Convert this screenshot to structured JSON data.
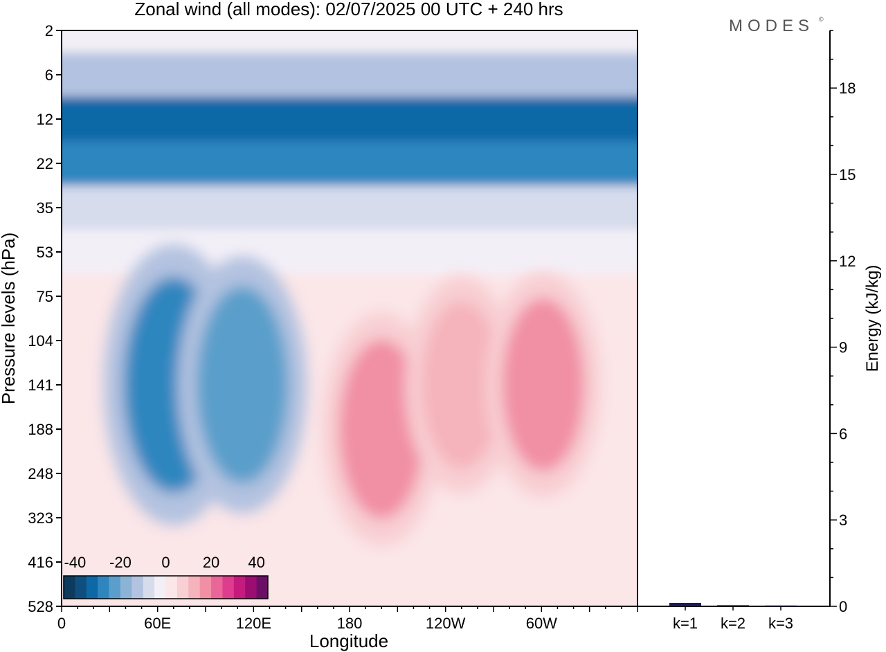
{
  "title": "Zonal wind (all modes):  02/07/2025  00 UTC  + 240 hrs",
  "logo": "MODES",
  "logo_mark": "©",
  "colors": {
    "bg": "#ffffff",
    "axis": "#000000",
    "bar": "#1a1a5e",
    "palette": [
      "#0d3b5e",
      "#0e4f80",
      "#0f68a6",
      "#2f86bf",
      "#5a9fcb",
      "#8bb3d6",
      "#b3c2e0",
      "#d6dcec",
      "#f3eff7",
      "#fbe6e8",
      "#f8cfd3",
      "#f5b3bb",
      "#f18fa4",
      "#ea6699",
      "#de3d8d",
      "#c51b7d",
      "#9c0d72",
      "#6b0f66"
    ]
  },
  "chart_data": [
    {
      "type": "heatmap",
      "title": "Zonal wind (all modes):  02/07/2025  00 UTC  + 240 hrs",
      "xlabel": "Longitude",
      "ylabel": "Pressure levels (hPa)",
      "x_ticks": [
        "0",
        "60E",
        "120E",
        "180",
        "120W",
        "60W"
      ],
      "x_tick_degrees": [
        0,
        60,
        120,
        180,
        240,
        300
      ],
      "xlim": [
        0,
        360
      ],
      "y_ticks": [
        "2",
        "6",
        "12",
        "22",
        "35",
        "53",
        "75",
        "104",
        "141",
        "188",
        "248",
        "323",
        "416",
        "528"
      ],
      "colorbar": {
        "ticks": [
          "-40",
          "-20",
          "0",
          "20",
          "40"
        ],
        "tick_values": [
          -40,
          -20,
          0,
          20,
          40
        ],
        "range": [
          -45,
          45
        ],
        "step": 5
      },
      "bands": [
        {
          "level": "2",
          "u": -4
        },
        {
          "level": "6",
          "u": -11
        },
        {
          "level": "12",
          "u": -33
        },
        {
          "level": "22",
          "u": -26
        },
        {
          "level": "35",
          "u": -9
        },
        {
          "level": "53",
          "u": -2
        },
        {
          "level": "75",
          "u": 0
        }
      ],
      "blobs": [
        {
          "lon": 70,
          "level": "141",
          "u": -30
        },
        {
          "lon": 113,
          "level": "141",
          "u": -24
        },
        {
          "lon": 200,
          "level": "188",
          "u": 18
        },
        {
          "lon": 250,
          "level": "141",
          "u": 14
        },
        {
          "lon": 301,
          "level": "141",
          "u": 16
        }
      ]
    },
    {
      "type": "bar",
      "categories": [
        "k=1",
        "k=2",
        "k=3"
      ],
      "values": [
        0.12,
        0.04,
        0.03
      ],
      "ylabel": "Energy (kJ/kg)",
      "y_ticks": [
        "0",
        "3",
        "6",
        "9",
        "12",
        "15",
        "18"
      ],
      "ylim": [
        0,
        20
      ]
    }
  ]
}
